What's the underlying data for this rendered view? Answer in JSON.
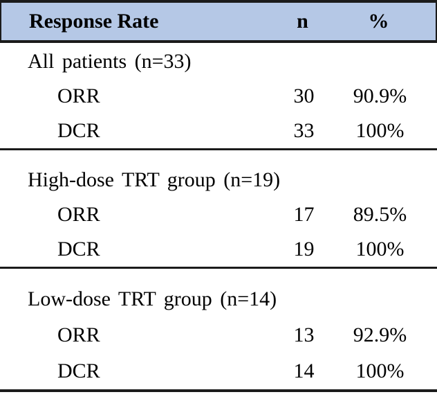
{
  "colors": {
    "header_bg": "#b5c8e6",
    "border": "#1b1b1b",
    "text": "#000000"
  },
  "table": {
    "header": {
      "response_rate": "Response Rate",
      "n": "n",
      "percent": "%"
    },
    "sections": [
      {
        "group": "All patients (n=33)",
        "rows": [
          {
            "label": "ORR",
            "n": "30",
            "pct": "90.9%"
          },
          {
            "label": "DCR",
            "n": "33",
            "pct": "100%"
          }
        ]
      },
      {
        "group": "High-dose TRT group (n=19)",
        "rows": [
          {
            "label": "ORR",
            "n": "17",
            "pct": "89.5%"
          },
          {
            "label": "DCR",
            "n": "19",
            "pct": "100%"
          }
        ]
      },
      {
        "group": "Low-dose TRT group (n=14)",
        "rows": [
          {
            "label": "ORR",
            "n": "13",
            "pct": "92.9%"
          },
          {
            "label": "DCR",
            "n": "14",
            "pct": "100%"
          }
        ]
      }
    ]
  },
  "chart_data": {
    "type": "table",
    "columns": [
      "Response Rate",
      "n",
      "%"
    ],
    "rows": [
      [
        "All patients (n=33)",
        "",
        ""
      ],
      [
        "ORR",
        "30",
        "90.9%"
      ],
      [
        "DCR",
        "33",
        "100%"
      ],
      [
        "High-dose TRT group (n=19)",
        "",
        ""
      ],
      [
        "ORR",
        "17",
        "89.5%"
      ],
      [
        "DCR",
        "19",
        "100%"
      ],
      [
        "Low-dose TRT group (n=14)",
        "",
        ""
      ],
      [
        "ORR",
        "13",
        "92.9%"
      ],
      [
        "DCR",
        "14",
        "100%"
      ]
    ]
  }
}
